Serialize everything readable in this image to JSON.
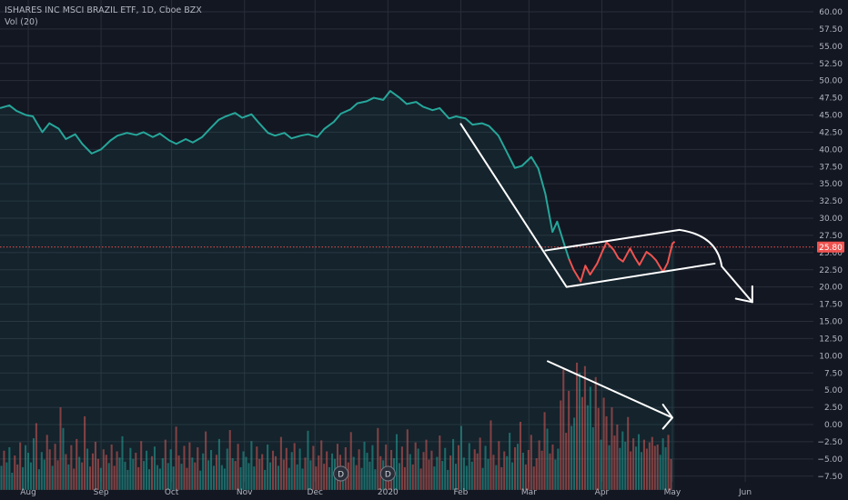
{
  "header": {
    "title": "ISHARES INC MSCI BRAZIL ETF, 1D, Cboe BZX",
    "volume_label": "Vol (20)"
  },
  "colors": {
    "background": "#131722",
    "grid": "#2a2e39",
    "up": "#26a69a",
    "down": "#ef5350",
    "area_fill": "#26a69a",
    "price_badge": "#ef5350",
    "axis_text": "#b2b5be",
    "drawing": "#ffffff",
    "event_marker": "#2a2e39"
  },
  "icons": {
    "event_marker": "dividend-marker-icon"
  },
  "price_badge_value": "25.80",
  "event_markers": [
    {
      "label": "D",
      "date": "2019-12-12"
    },
    {
      "label": "D",
      "date": "2020-01-01"
    }
  ],
  "chart_data": {
    "type": "line",
    "title": "ISHARES INC MSCI BRAZIL ETF, 1D, Cboe BZX",
    "x_range": [
      "2019-07-20",
      "2020-06-30"
    ],
    "x_ticks": [
      {
        "label": "Aug",
        "date": "2019-08-01"
      },
      {
        "label": "Sep",
        "date": "2019-09-01"
      },
      {
        "label": "Oct",
        "date": "2019-10-01"
      },
      {
        "label": "Nov",
        "date": "2019-11-01"
      },
      {
        "label": "Dec",
        "date": "2019-12-01"
      },
      {
        "label": "2020",
        "date": "2020-01-01"
      },
      {
        "label": "Feb",
        "date": "2020-02-01"
      },
      {
        "label": "Mar",
        "date": "2020-03-01"
      },
      {
        "label": "Apr",
        "date": "2020-04-01"
      },
      {
        "label": "May",
        "date": "2020-05-01"
      },
      {
        "label": "Jun",
        "date": "2020-06-01"
      }
    ],
    "y_range": [
      -9.5,
      61.5
    ],
    "y_ticks": [
      "60.00",
      "57.50",
      "55.00",
      "52.50",
      "50.00",
      "47.50",
      "45.00",
      "42.50",
      "40.00",
      "37.50",
      "35.00",
      "32.50",
      "30.00",
      "27.50",
      "25.00",
      "22.50",
      "20.00",
      "17.50",
      "15.00",
      "12.50",
      "10.00",
      "7.50",
      "5.00",
      "2.50",
      "0.00",
      "−2.50",
      "−5.00",
      "−7.50"
    ],
    "y_tick_values": [
      60,
      57.5,
      55,
      52.5,
      50,
      47.5,
      45,
      42.5,
      40,
      37.5,
      35,
      32.5,
      30,
      27.5,
      25,
      22.5,
      20,
      17.5,
      15,
      12.5,
      10,
      7.5,
      5,
      2.5,
      0,
      -2.5,
      -5,
      -7.5
    ],
    "price_line_value": 25.8,
    "grid": true,
    "price_series": [
      [
        "2019-07-20",
        46.0
      ],
      [
        "2019-07-24",
        46.4
      ],
      [
        "2019-07-27",
        45.6
      ],
      [
        "2019-07-31",
        45.0
      ],
      [
        "2019-08-03",
        44.8
      ],
      [
        "2019-08-07",
        42.5
      ],
      [
        "2019-08-10",
        43.8
      ],
      [
        "2019-08-14",
        43.0
      ],
      [
        "2019-08-17",
        41.5
      ],
      [
        "2019-08-21",
        42.2
      ],
      [
        "2019-08-24",
        40.8
      ],
      [
        "2019-08-28",
        39.4
      ],
      [
        "2019-09-01",
        40.0
      ],
      [
        "2019-09-05",
        41.3
      ],
      [
        "2019-09-08",
        42.0
      ],
      [
        "2019-09-12",
        42.4
      ],
      [
        "2019-09-16",
        42.1
      ],
      [
        "2019-09-19",
        42.5
      ],
      [
        "2019-09-23",
        41.8
      ],
      [
        "2019-09-26",
        42.3
      ],
      [
        "2019-09-30",
        41.3
      ],
      [
        "2019-10-03",
        40.8
      ],
      [
        "2019-10-07",
        41.5
      ],
      [
        "2019-10-10",
        41.0
      ],
      [
        "2019-10-14",
        41.8
      ],
      [
        "2019-10-17",
        42.9
      ],
      [
        "2019-10-21",
        44.3
      ],
      [
        "2019-10-24",
        44.8
      ],
      [
        "2019-10-28",
        45.3
      ],
      [
        "2019-10-31",
        44.6
      ],
      [
        "2019-11-04",
        45.1
      ],
      [
        "2019-11-07",
        43.9
      ],
      [
        "2019-11-11",
        42.4
      ],
      [
        "2019-11-14",
        42.0
      ],
      [
        "2019-11-18",
        42.4
      ],
      [
        "2019-11-21",
        41.6
      ],
      [
        "2019-11-25",
        42.0
      ],
      [
        "2019-11-28",
        42.2
      ],
      [
        "2019-12-02",
        41.8
      ],
      [
        "2019-12-05",
        43.0
      ],
      [
        "2019-12-09",
        44.0
      ],
      [
        "2019-12-12",
        45.2
      ],
      [
        "2019-12-16",
        45.8
      ],
      [
        "2019-12-19",
        46.7
      ],
      [
        "2019-12-23",
        47.0
      ],
      [
        "2019-12-26",
        47.5
      ],
      [
        "2019-12-30",
        47.2
      ],
      [
        "2020-01-02",
        48.5
      ],
      [
        "2020-01-06",
        47.5
      ],
      [
        "2020-01-09",
        46.6
      ],
      [
        "2020-01-13",
        46.9
      ],
      [
        "2020-01-16",
        46.2
      ],
      [
        "2020-01-20",
        45.7
      ],
      [
        "2020-01-23",
        46.0
      ],
      [
        "2020-01-27",
        44.5
      ],
      [
        "2020-01-30",
        44.8
      ],
      [
        "2020-02-03",
        44.5
      ],
      [
        "2020-02-06",
        43.6
      ],
      [
        "2020-02-10",
        43.8
      ],
      [
        "2020-02-13",
        43.4
      ],
      [
        "2020-02-17",
        42.0
      ],
      [
        "2020-02-20",
        40.0
      ],
      [
        "2020-02-24",
        37.3
      ],
      [
        "2020-02-27",
        37.6
      ],
      [
        "2020-03-02",
        38.9
      ],
      [
        "2020-03-05",
        37.2
      ],
      [
        "2020-03-08",
        33.5
      ],
      [
        "2020-03-11",
        28.0
      ],
      [
        "2020-03-13",
        29.5
      ],
      [
        "2020-03-16",
        26.2
      ],
      [
        "2020-03-18",
        24.1
      ],
      [
        "2020-03-20",
        22.5
      ],
      [
        "2020-03-23",
        20.8
      ],
      [
        "2020-03-25",
        23.1
      ],
      [
        "2020-03-27",
        21.8
      ],
      [
        "2020-03-30",
        23.4
      ],
      [
        "2020-04-01",
        25.0
      ],
      [
        "2020-04-03",
        26.5
      ],
      [
        "2020-04-06",
        25.4
      ],
      [
        "2020-04-08",
        24.2
      ],
      [
        "2020-04-10",
        23.7
      ],
      [
        "2020-04-13",
        25.6
      ],
      [
        "2020-04-15",
        24.3
      ],
      [
        "2020-04-17",
        23.2
      ],
      [
        "2020-04-20",
        25.1
      ],
      [
        "2020-04-22",
        24.6
      ],
      [
        "2020-04-24",
        23.9
      ],
      [
        "2020-04-27",
        22.2
      ],
      [
        "2020-04-29",
        23.5
      ],
      [
        "2020-05-01",
        26.3
      ],
      [
        "2020-05-02",
        26.6
      ]
    ],
    "volume_series": [
      -6.0,
      -3.8,
      -5.5,
      -3.3,
      -7.0,
      -4.5,
      -5.8,
      -2.6,
      -6.2,
      -3.0,
      -4.1,
      -5.5,
      -2.0,
      0.2,
      -6.5,
      -4.0,
      -5.1,
      -1.5,
      -3.6,
      -6.0,
      -2.8,
      -5.2,
      2.5,
      -0.5,
      -4.3,
      -5.8,
      -3.0,
      -6.4,
      -2.1,
      -4.7,
      -5.5,
      1.2,
      -3.5,
      -6.1,
      -4.2,
      -2.5,
      -5.0,
      -6.3,
      -3.6,
      -4.4,
      -5.6,
      -2.9,
      -6.0,
      -3.9,
      -4.8,
      -1.7,
      -5.4,
      -6.6,
      -3.4,
      -5.0,
      -4.1,
      -6.2,
      -2.4,
      -5.3,
      -3.8,
      -6.5,
      -4.6,
      -3.2,
      -5.9,
      -6.4,
      -4.9,
      -2.2,
      -5.6,
      -3.6,
      -6.1,
      -0.3,
      -4.5,
      -5.7,
      -3.1,
      -6.3,
      -2.6,
      -4.8,
      -5.5,
      -3.3,
      -6.7,
      -4.2,
      -1.0,
      -5.2,
      -3.7,
      -6.0,
      -4.4,
      -2.1,
      -5.9,
      -6.4,
      -3.5,
      -0.8,
      -4.9,
      -5.3,
      -2.8,
      -6.2,
      -3.9,
      -4.7,
      -5.6,
      -2.4,
      -6.1,
      -3.2,
      -5.0,
      -4.3,
      -6.6,
      -2.9,
      -5.5,
      -3.8,
      -4.6,
      -6.0,
      -1.8,
      -5.1,
      -3.4,
      -6.3,
      -4.0,
      -2.7,
      -5.8,
      -3.5,
      -6.4,
      -4.8,
      -0.9,
      -5.2,
      -3.1,
      -6.1,
      -4.5,
      -2.3,
      -5.7,
      -3.9,
      -6.2,
      -4.2,
      -5.0,
      -2.8,
      -4.4,
      -6.0,
      -3.3,
      -5.5,
      -1.1,
      -4.7,
      -5.9,
      -3.6,
      -6.3,
      -2.5,
      -4.1,
      -5.4,
      -3.0,
      -6.5,
      -0.5,
      -4.6,
      -5.2,
      -2.9,
      -6.0,
      -3.7,
      -4.9,
      -1.4,
      -5.6,
      -3.2,
      -6.2,
      -0.7,
      -4.3,
      -5.8,
      -2.6,
      -3.5,
      -6.4,
      -4.0,
      -2.2,
      -5.1,
      -3.8,
      -6.1,
      -4.7,
      -1.6,
      -5.3,
      -3.4,
      -6.6,
      -4.5,
      -2.1,
      -5.7,
      -3.0,
      -0.2,
      -4.8,
      -6.0,
      -2.7,
      -5.4,
      -3.6,
      -4.2,
      -1.9,
      -6.3,
      -3.1,
      -5.0,
      0.6,
      -4.4,
      -5.9,
      -2.4,
      -6.2,
      -3.9,
      -4.6,
      -1.2,
      -5.5,
      -3.3,
      -2.8,
      0.4,
      -4.1,
      -5.8,
      -3.7,
      -1.5,
      -6.1,
      -4.9,
      -2.3,
      -3.8,
      1.8,
      -0.6,
      -4.2,
      -2.9,
      -5.1,
      -3.5,
      3.5,
      8.0,
      -1.2,
      4.9,
      -0.2,
      1.0,
      9.0,
      7.5,
      4.0,
      8.5,
      2.8,
      5.5,
      -0.4,
      6.9,
      2.4,
      -2.2,
      3.9,
      1.2,
      -3.0,
      2.5,
      -1.6,
      0.0,
      -3.4,
      -1.0,
      -2.5,
      1.1,
      -3.9,
      -2.0,
      -3.2,
      -1.4,
      -4.0,
      -2.2,
      -3.5,
      -2.6,
      -1.8,
      -3.1,
      -2.9,
      -4.4,
      -2.0,
      -3.3,
      -1.5,
      -5.0
    ]
  }
}
